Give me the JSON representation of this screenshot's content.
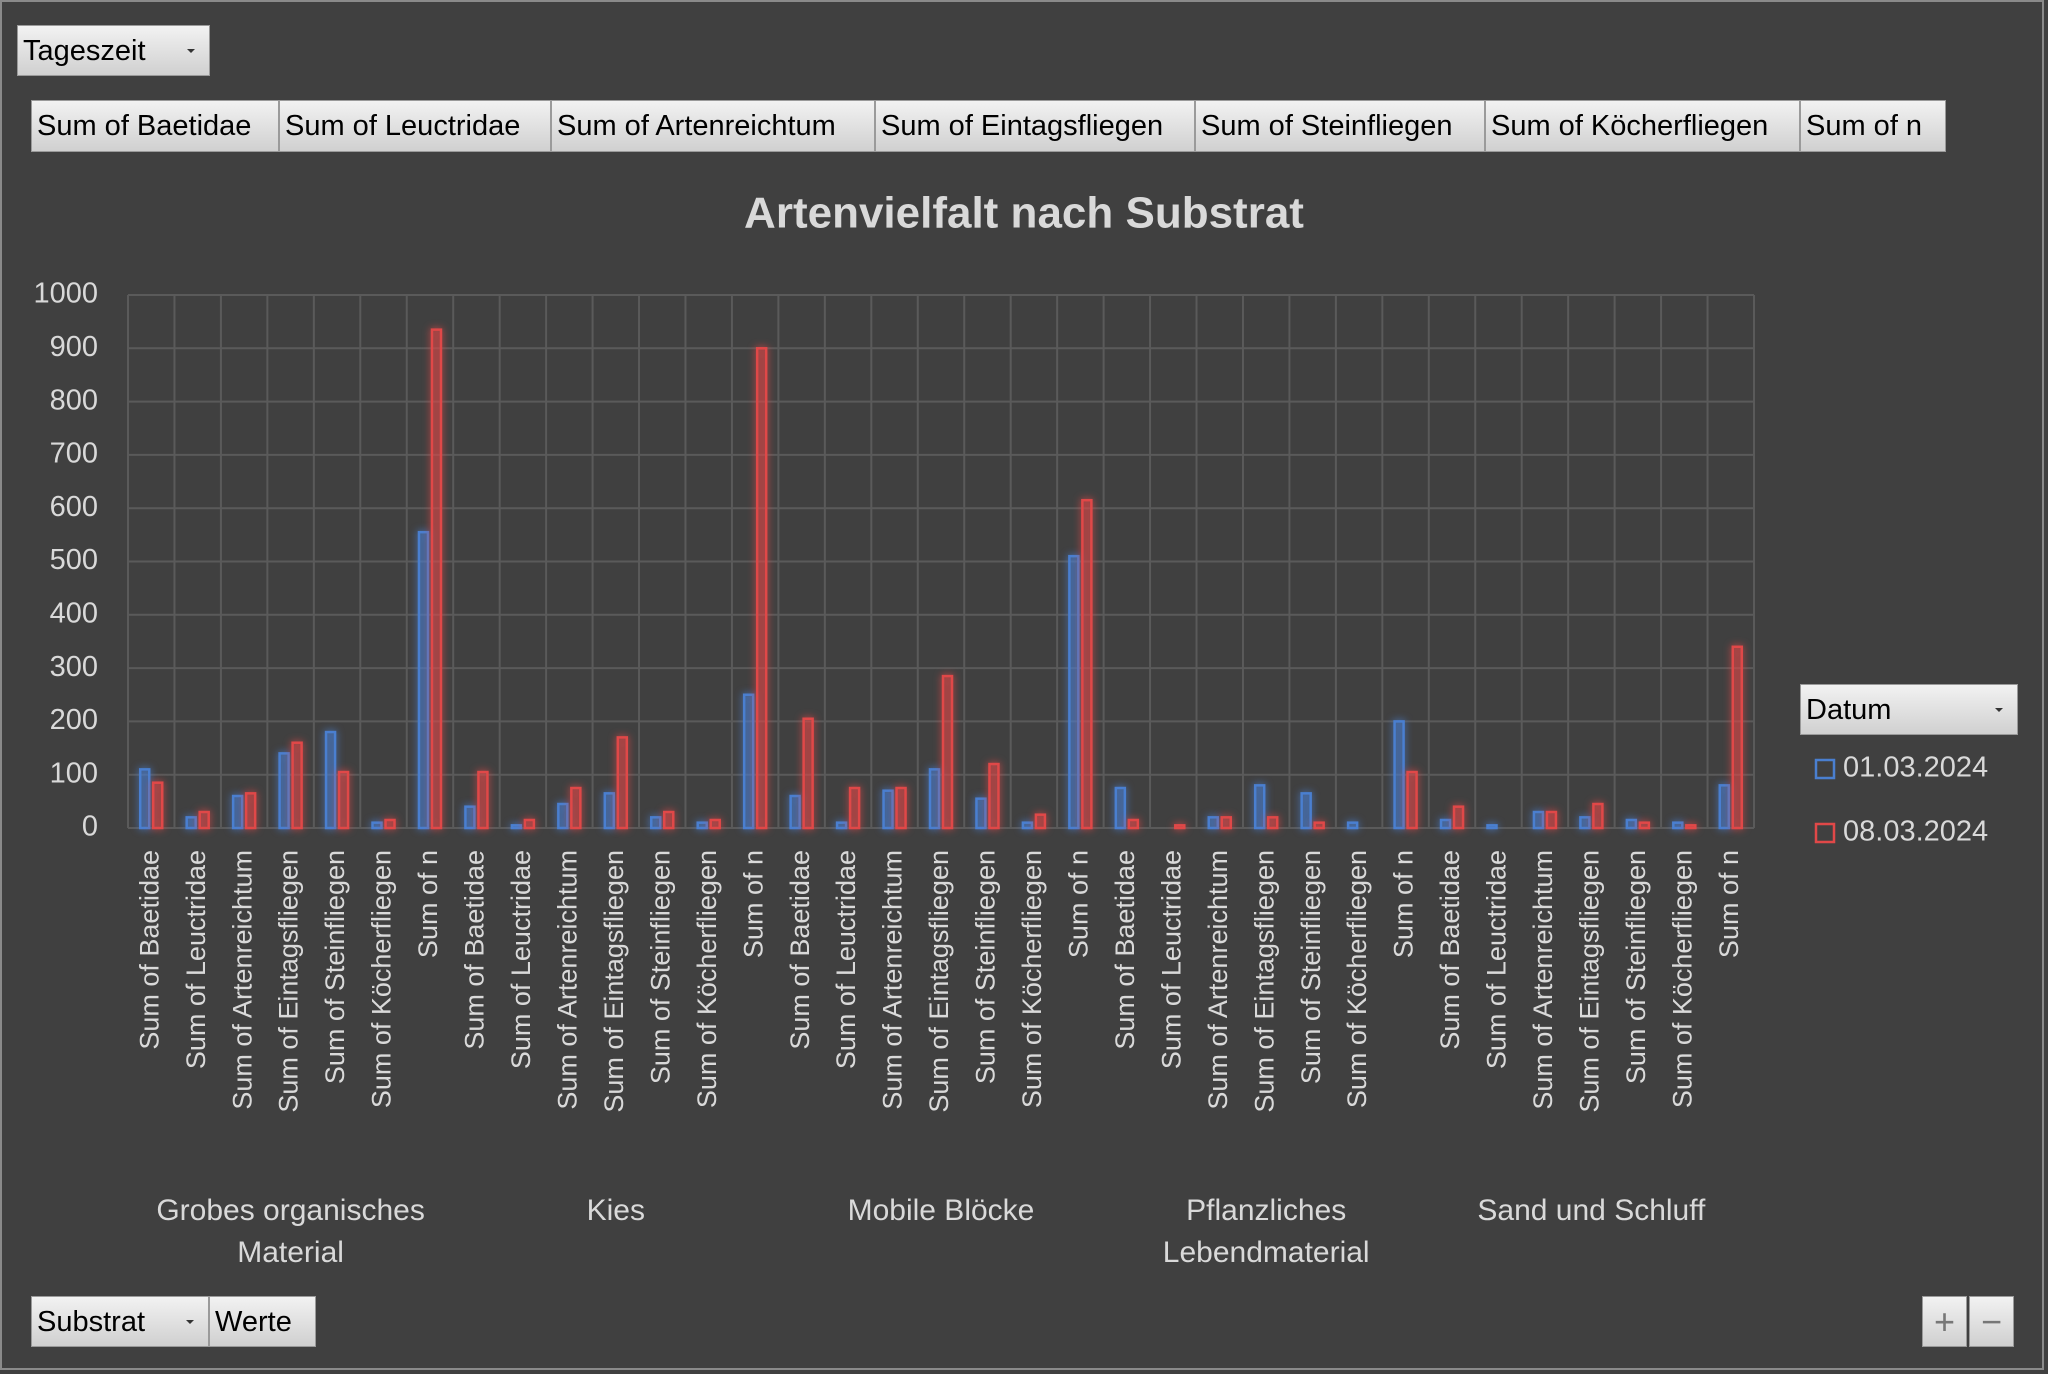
{
  "filter_field": "Tageszeit",
  "value_fields": [
    "Sum of Baetidae",
    "Sum of Leuctridae",
    "Sum of Artenreichtum",
    "Sum of Eintagsfliegen",
    "Sum of Steinfliegen",
    "Sum of Köcherfliegen",
    "Sum of n"
  ],
  "legend_field": "Datum",
  "axis_field": "Substrat",
  "values_field": "Werte",
  "zoom_buttons": [
    "+",
    "−"
  ],
  "chart_data": {
    "type": "bar",
    "title": "Artenvielfalt nach Substrat",
    "groups": [
      "Grobes organisches Material",
      "Kies",
      "Mobile Blöcke",
      "Pflanzliches Lebendmaterial",
      "Sand und Schluff"
    ],
    "categories": [
      "Sum of Baetidae",
      "Sum of Leuctridae",
      "Sum of Artenreichtum",
      "Sum of Eintagsfliegen",
      "Sum of Steinfliegen",
      "Sum of Köcherfliegen",
      "Sum of n",
      "Sum of Baetidae",
      "Sum of Leuctridae",
      "Sum of Artenreichtum",
      "Sum of Eintagsfliegen",
      "Sum of Steinfliegen",
      "Sum of Köcherfliegen",
      "Sum of n",
      "Sum of Baetidae",
      "Sum of Leuctridae",
      "Sum of Artenreichtum",
      "Sum of Eintagsfliegen",
      "Sum of Steinfliegen",
      "Sum of Köcherfliegen",
      "Sum of n",
      "Sum of Baetidae",
      "Sum of Leuctridae",
      "Sum of Artenreichtum",
      "Sum of Eintagsfliegen",
      "Sum of Steinfliegen",
      "Sum of Köcherfliegen",
      "Sum of n",
      "Sum of Baetidae",
      "Sum of Leuctridae",
      "Sum of Artenreichtum",
      "Sum of Eintagsfliegen",
      "Sum of Steinfliegen",
      "Sum of Köcherfliegen",
      "Sum of n"
    ],
    "series": [
      {
        "name": "01.03.2024",
        "color": "#4a7fd0",
        "values": [
          110,
          20,
          60,
          140,
          180,
          10,
          555,
          40,
          5,
          45,
          65,
          20,
          10,
          250,
          60,
          10,
          70,
          110,
          55,
          10,
          510,
          75,
          0,
          20,
          80,
          65,
          10,
          200,
          15,
          5,
          30,
          20,
          15,
          10,
          80
        ]
      },
      {
        "name": "08.03.2024",
        "color": "#e04848",
        "values": [
          85,
          30,
          65,
          160,
          105,
          15,
          935,
          105,
          15,
          75,
          170,
          30,
          15,
          900,
          205,
          75,
          75,
          285,
          120,
          25,
          615,
          15,
          5,
          20,
          20,
          10,
          0,
          105,
          40,
          0,
          30,
          45,
          10,
          5,
          340
        ]
      }
    ],
    "ylim": [
      0,
      1000
    ],
    "yticks": [
      0,
      100,
      200,
      300,
      400,
      500,
      600,
      700,
      800,
      900,
      1000
    ],
    "grid": true,
    "legend": "right"
  }
}
